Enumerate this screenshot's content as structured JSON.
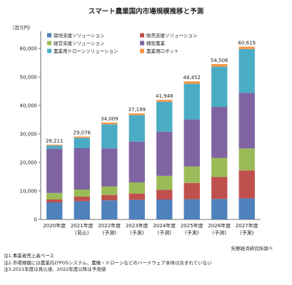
{
  "title": "スマート農業国内市場規模推移と予測",
  "unit_label": "（百万円）",
  "source": "矢野経済研究所調べ",
  "notes": [
    "注1.事業者売上高ベース",
    "注2.市場規模には農業向けPOSシステム、農機・ドローンなどのハードウェア本体は含まれていない",
    "注3.2021年度は見込値、2022年度以降は予測値"
  ],
  "chart_data": {
    "type": "bar",
    "stacked": true,
    "categories": [
      [
        "2020年度",
        ""
      ],
      [
        "2021年度",
        "(見込)"
      ],
      [
        "2022年度",
        "(予測)"
      ],
      [
        "2023年度",
        "(予測)"
      ],
      [
        "2024年度",
        "(予測)"
      ],
      [
        "2025年度",
        "(予測)"
      ],
      [
        "2026年度",
        "(予測)"
      ],
      [
        "2027年度",
        "(予測)"
      ]
    ],
    "series": [
      {
        "name": "栽培支援ソリューション",
        "color": "#4f81bd",
        "values": [
          6000,
          6400,
          6700,
          6900,
          7000,
          7100,
          7200,
          7400
        ]
      },
      {
        "name": "販売支援ソリューション",
        "color": "#c0504d",
        "values": [
          1000,
          1600,
          1900,
          2200,
          3400,
          5700,
          7700,
          9800
        ]
      },
      {
        "name": "経営支援ソリューション",
        "color": "#9bbb59",
        "values": [
          2300,
          2500,
          3000,
          3900,
          4900,
          5800,
          6700,
          7700
        ]
      },
      {
        "name": "精密農業",
        "color": "#8064a2",
        "values": [
          15500,
          14500,
          13300,
          14300,
          15500,
          16500,
          17900,
          19500
        ]
      },
      {
        "name": "農業用ドローンソリューション",
        "color": "#4bacc6",
        "values": [
          1100,
          3600,
          8500,
          9300,
          10500,
          12500,
          14100,
          15400
        ]
      },
      {
        "name": "農業用ロボット",
        "color": "#f79646",
        "values": [
          311,
          476,
          609,
          599,
          648,
          852,
          906,
          819
        ]
      }
    ],
    "totals": [
      "26,211",
      "29,076",
      "34,009",
      "37,199",
      "41,948",
      "48,452",
      "54,506",
      "60,619"
    ],
    "ylim": [
      0,
      65000
    ],
    "yticks": [
      "0",
      "10,000",
      "20,000",
      "30,000",
      "40,000",
      "50,000",
      "60,000"
    ],
    "grid": false,
    "legend": "top-left"
  }
}
